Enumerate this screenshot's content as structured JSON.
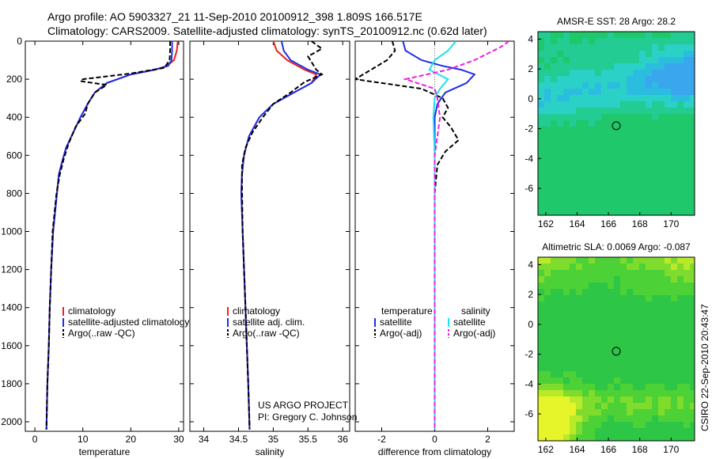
{
  "header": {
    "line1": "Argo profile: AO 5903327_21 11-Sep-2010 20100912_398 1.809S 166.517E",
    "line2": "Climatology: CARS2009. Satellite-adjusted climatology: synTS_20100912.nc (0.62d later)"
  },
  "credits": {
    "project": "US ARGO PROJECT",
    "pi": "PI: Gregory C. Johnson",
    "stamp": "CSIRO 22-Sep-2010 20:43:47"
  },
  "chart_data": [
    {
      "type": "line",
      "id": "temperature",
      "xlabel": "temperature",
      "ylabel": "",
      "xlim": [
        -2,
        31
      ],
      "ylim": [
        2050,
        0
      ],
      "xticks": [
        0,
        10,
        20,
        30
      ],
      "yticks": [
        0,
        200,
        400,
        600,
        800,
        1000,
        1200,
        1400,
        1600,
        1800,
        2000
      ],
      "legend": {
        "position": "lower-right",
        "entries": [
          {
            "label": "climatology",
            "color": "#e8251f"
          },
          {
            "label": "satellite-adjusted climatology",
            "color": "#1f2de8"
          },
          {
            "label": "Argo(..raw -QC)",
            "color": "#000000"
          }
        ]
      },
      "series": [
        {
          "name": "climatology",
          "color": "#e8251f",
          "dash": false,
          "x": [
            29.8,
            29.6,
            29.0,
            27.5,
            25.0,
            20.0,
            15.0,
            12.5,
            11.0,
            9.5,
            8.0,
            6.5,
            5.6,
            5.0,
            4.6,
            4.2,
            3.8,
            3.4,
            3.1,
            2.9,
            2.6,
            2.4
          ],
          "y": [
            0,
            50,
            100,
            130,
            150,
            175,
            220,
            270,
            330,
            400,
            480,
            560,
            640,
            700,
            800,
            900,
            1000,
            1200,
            1400,
            1600,
            1800,
            2040
          ]
        },
        {
          "name": "satellite",
          "color": "#1f2de8",
          "dash": false,
          "x": [
            28.6,
            28.6,
            28.5,
            27.8,
            25.0,
            20.0,
            15.0,
            12.5,
            11.0,
            9.5,
            8.0,
            6.5,
            5.6,
            5.0,
            4.6,
            4.2,
            3.8,
            3.4,
            3.1,
            2.9,
            2.6,
            2.4
          ],
          "y": [
            0,
            50,
            100,
            130,
            150,
            175,
            220,
            270,
            330,
            400,
            480,
            560,
            640,
            700,
            800,
            900,
            1000,
            1200,
            1400,
            1600,
            1800,
            2040
          ]
        },
        {
          "name": "Argo",
          "color": "#000000",
          "dash": true,
          "x": [
            28.2,
            28.2,
            28.1,
            27.0,
            20.0,
            10.0,
            9.5,
            15.0,
            12.5,
            11.0,
            10.5,
            8.5,
            7.0,
            6.0,
            5.2,
            4.5,
            4.1,
            3.7,
            3.4,
            3.1,
            2.9,
            2.6,
            2.4
          ],
          "y": [
            0,
            50,
            100,
            140,
            170,
            200,
            210,
            230,
            270,
            330,
            380,
            450,
            540,
            620,
            700,
            800,
            900,
            1000,
            1200,
            1400,
            1600,
            1800,
            2040
          ]
        }
      ]
    },
    {
      "type": "line",
      "id": "salinity",
      "xlabel": "salinity",
      "ylabel": "",
      "xlim": [
        33.8,
        36.1
      ],
      "ylim": [
        2050,
        0
      ],
      "xticks": [
        34,
        34.5,
        35,
        35.5,
        36
      ],
      "legend": {
        "position": "lower-right",
        "entries": [
          {
            "label": "climatology",
            "color": "#e8251f"
          },
          {
            "label": "satellite adj. clim.",
            "color": "#1f2de8"
          },
          {
            "label": "Argo(..raw -QC)",
            "color": "#000000"
          }
        ]
      },
      "series": [
        {
          "name": "climatology",
          "color": "#e8251f",
          "dash": false,
          "x": [
            35.0,
            35.05,
            35.2,
            35.45,
            35.62,
            35.55,
            35.3,
            35.0,
            34.8,
            34.65,
            34.58,
            34.55,
            34.54,
            34.56,
            34.58,
            34.6,
            34.62,
            34.64,
            34.66
          ],
          "y": [
            0,
            50,
            100,
            150,
            175,
            220,
            270,
            330,
            400,
            500,
            600,
            700,
            800,
            1000,
            1200,
            1400,
            1600,
            1800,
            2040
          ]
        },
        {
          "name": "satellite",
          "color": "#1f2de8",
          "dash": false,
          "x": [
            35.12,
            35.15,
            35.25,
            35.5,
            35.68,
            35.55,
            35.3,
            35.0,
            34.8,
            34.65,
            34.58,
            34.55,
            34.54,
            34.56,
            34.58,
            34.6,
            34.62,
            34.64,
            34.66
          ],
          "y": [
            0,
            50,
            100,
            150,
            175,
            220,
            270,
            330,
            400,
            500,
            600,
            700,
            800,
            1000,
            1200,
            1400,
            1600,
            1800,
            2040
          ]
        },
        {
          "name": "Argo",
          "color": "#000000",
          "dash": true,
          "x": [
            35.55,
            35.7,
            35.5,
            35.62,
            35.7,
            35.45,
            35.25,
            35.0,
            34.85,
            34.7,
            34.6,
            34.55,
            34.55,
            34.56,
            34.58,
            34.6,
            34.62,
            34.64,
            34.66
          ],
          "y": [
            0,
            40,
            80,
            150,
            175,
            215,
            270,
            330,
            400,
            480,
            560,
            650,
            750,
            1000,
            1200,
            1400,
            1600,
            1800,
            2040
          ]
        }
      ]
    },
    {
      "type": "line",
      "id": "difference",
      "xlabel": "difference from climatology",
      "ylabel": "",
      "xlim": [
        -3,
        3
      ],
      "ylim": [
        2050,
        0
      ],
      "xticks": [
        -2,
        0,
        2
      ],
      "legend": {
        "position": "lower",
        "columns": [
          {
            "title": "temperature",
            "entries": [
              {
                "label": "satellite",
                "color": "#1f2de8",
                "dash": false
              },
              {
                "label": "Argo(-adj)",
                "color": "#000000",
                "dash": true
              }
            ]
          },
          {
            "title": "salinity",
            "entries": [
              {
                "label": "satellite",
                "color": "#1ee1ee",
                "dash": false
              },
              {
                "label": "Argo(-adj)",
                "color": "#ee1ee1",
                "dash": true
              }
            ]
          }
        ]
      },
      "series": [
        {
          "name": "temperature satellite",
          "color": "#1f2de8",
          "dash": false,
          "x": [
            -1.2,
            -1.1,
            -0.5,
            0.3,
            1.0,
            1.5,
            1.2,
            0.4,
            0.1,
            0.0,
            0.0,
            0.0,
            0.0,
            0.0,
            0.0,
            0.0
          ],
          "y": [
            0,
            50,
            100,
            130,
            150,
            175,
            220,
            270,
            330,
            400,
            600,
            800,
            1000,
            1400,
            1800,
            2040
          ]
        },
        {
          "name": "temperature Argo",
          "color": "#000000",
          "dash": true,
          "x": [
            -1.6,
            -1.5,
            -1.8,
            -3.0,
            -2.0,
            -0.5,
            0.3,
            0.5,
            0.3,
            0.6,
            0.9,
            0.4,
            0.1,
            0.0,
            0.0,
            0.0,
            0.0
          ],
          "y": [
            0,
            50,
            100,
            200,
            220,
            250,
            300,
            350,
            400,
            450,
            520,
            580,
            650,
            800,
            1200,
            1600,
            2040
          ]
        },
        {
          "name": "salinity satellite",
          "color": "#1ee1ee",
          "dash": false,
          "x": [
            0.8,
            0.5,
            0.0,
            -0.2,
            0.5,
            0.2,
            0.0,
            -0.05,
            0.0,
            0.0,
            0.0,
            0.0,
            0.0
          ],
          "y": [
            0,
            50,
            100,
            150,
            200,
            250,
            300,
            400,
            600,
            800,
            1200,
            1600,
            2040
          ]
        },
        {
          "name": "salinity Argo",
          "color": "#ee1ee1",
          "dash": true,
          "x": [
            2.8,
            2.5,
            1.5,
            0.5,
            -1.1,
            0.0,
            0.1,
            0.2,
            0.1,
            0.0,
            0.0,
            0.0,
            0.0,
            0.0
          ],
          "y": [
            0,
            30,
            100,
            150,
            200,
            250,
            300,
            400,
            500,
            600,
            800,
            1200,
            1600,
            2040
          ]
        }
      ]
    },
    {
      "type": "heatmap",
      "id": "sst",
      "title": "AMSR-E SST: 28 Argo: 28.2",
      "xlim": [
        161.5,
        171.5
      ],
      "ylim": [
        -7.8,
        4.5
      ],
      "xticks": [
        162,
        164,
        166,
        168,
        170
      ],
      "yticks": [
        4,
        2,
        0,
        -2,
        -4,
        -6
      ],
      "marker": {
        "lon": 166.5,
        "lat": -1.8
      },
      "colors": [
        "#1fc86b",
        "#22cc92",
        "#2bd1c6",
        "#2bbde0",
        "#3aa6ee"
      ]
    },
    {
      "type": "heatmap",
      "id": "sla",
      "title": "Altimetric SLA: 0.0069 Argo: -0.087",
      "xlim": [
        161.5,
        171.5
      ],
      "ylim": [
        -7.8,
        4.5
      ],
      "xticks": [
        162,
        164,
        166,
        168,
        170
      ],
      "yticks": [
        4,
        2,
        0,
        -2,
        -4,
        -6
      ],
      "marker": {
        "lon": 166.5,
        "lat": -1.8
      },
      "colors": [
        "#2ec646",
        "#4cd236",
        "#7fdc2c",
        "#b8ea2a",
        "#e6f52a"
      ]
    }
  ]
}
